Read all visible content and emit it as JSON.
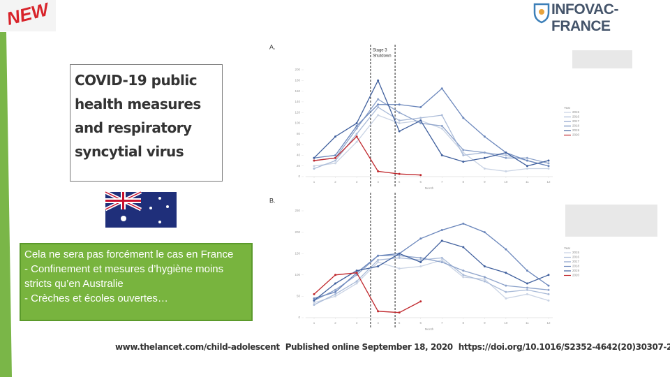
{
  "badge": "NEW",
  "logo": {
    "name": "INFOVAC-FRANCE"
  },
  "paper_title": "COVID-19 public health measures and respiratory syncytial virus",
  "note": {
    "lines": [
      "Cela ne sera pas forcément le cas en France",
      "- Confinement et mesures d’hygiène moins stricts qu’en Australie",
      "- Crèches et écoles ouvertes…"
    ]
  },
  "footer": {
    "url": "www.thelancet.com/child-adolescent",
    "published": "Published online September 18, 2020",
    "doi": "https://doi.org/10.1016/S2352-4642(20)30307-2"
  },
  "chart_data": [
    {
      "type": "line",
      "panel": "A.",
      "xlabel": "Month",
      "legend_title": "Year",
      "x": [
        1,
        2,
        3,
        4,
        5,
        6,
        7,
        8,
        9,
        10,
        11,
        12
      ],
      "xlim": [
        0.6,
        12.2
      ],
      "xticks": [
        1,
        2,
        3,
        4,
        5,
        6,
        7,
        8,
        9,
        10,
        11,
        12
      ],
      "ylim": [
        0,
        200
      ],
      "yticks": [
        0,
        20,
        40,
        60,
        80,
        100,
        120,
        140,
        160,
        180,
        200
      ],
      "annotation": {
        "lines": [
          "Stage 3",
          "Shutdown"
        ],
        "x": [
          3.65,
          4.8
        ]
      },
      "series": [
        {
          "name": "2015",
          "color": "#c9d3e4",
          "values": [
            20,
            25,
            65,
            115,
            100,
            105,
            90,
            45,
            15,
            10,
            15,
            15
          ]
        },
        {
          "name": "2016",
          "color": "#aabbd8",
          "values": [
            15,
            30,
            80,
            130,
            105,
            110,
            115,
            40,
            45,
            40,
            30,
            20
          ]
        },
        {
          "name": "2017",
          "color": "#8ca2ca",
          "values": [
            30,
            35,
            90,
            145,
            120,
            100,
            95,
            50,
            45,
            35,
            35,
            25
          ]
        },
        {
          "name": "2018",
          "color": "#6a86bb",
          "values": [
            35,
            40,
            95,
            135,
            135,
            130,
            165,
            110,
            75,
            45,
            30,
            20
          ]
        },
        {
          "name": "2019",
          "color": "#3f5f9d",
          "values": [
            35,
            75,
            100,
            180,
            85,
            105,
            40,
            28,
            35,
            45,
            20,
            30
          ]
        },
        {
          "name": "2020",
          "color": "#c0282d",
          "values": [
            30,
            35,
            75,
            10,
            5,
            3,
            null,
            null,
            null,
            null,
            null,
            null
          ]
        }
      ]
    },
    {
      "type": "line",
      "panel": "B.",
      "xlabel": "Month",
      "legend_title": "Year",
      "x": [
        1,
        2,
        3,
        4,
        5,
        6,
        7,
        8,
        9,
        10,
        11,
        12
      ],
      "xlim": [
        0.6,
        12.2
      ],
      "xticks": [
        1,
        2,
        3,
        4,
        5,
        6,
        7,
        8,
        9,
        10,
        11,
        12
      ],
      "ylim": [
        0,
        250
      ],
      "yticks": [
        0,
        50,
        100,
        150,
        200,
        250
      ],
      "annotation": {
        "lines": [],
        "x": [
          3.65,
          4.8
        ]
      },
      "series": [
        {
          "name": "2015",
          "color": "#c9d3e4",
          "values": [
            35,
            50,
            80,
            130,
            115,
            120,
            135,
            95,
            90,
            45,
            55,
            40
          ]
        },
        {
          "name": "2016",
          "color": "#aabbd8",
          "values": [
            30,
            55,
            85,
            135,
            140,
            135,
            140,
            100,
            85,
            60,
            65,
            55
          ]
        },
        {
          "name": "2017",
          "color": "#8ca2ca",
          "values": [
            40,
            65,
            100,
            145,
            145,
            140,
            130,
            110,
            95,
            75,
            70,
            65
          ]
        },
        {
          "name": "2018",
          "color": "#6a86bb",
          "values": [
            45,
            60,
            105,
            145,
            150,
            185,
            205,
            220,
            200,
            160,
            110,
            75
          ]
        },
        {
          "name": "2019",
          "color": "#3f5f9d",
          "values": [
            40,
            80,
            110,
            120,
            150,
            130,
            180,
            165,
            120,
            105,
            80,
            100
          ]
        },
        {
          "name": "2020",
          "color": "#c0282d",
          "values": [
            55,
            100,
            105,
            15,
            12,
            38,
            null,
            null,
            null,
            null,
            null,
            null
          ]
        }
      ]
    }
  ]
}
